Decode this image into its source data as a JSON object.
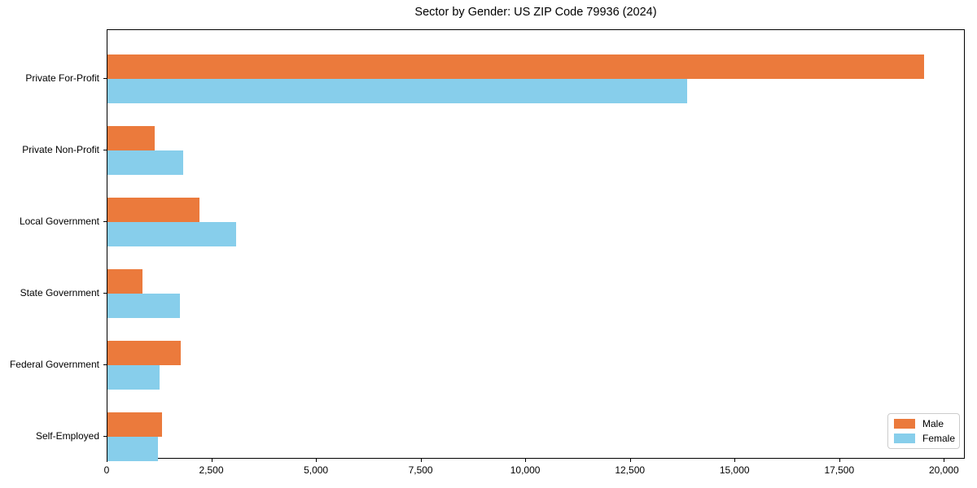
{
  "chart_data": {
    "type": "bar",
    "orientation": "horizontal",
    "title": "Sector by Gender: US ZIP Code 79936 (2024)",
    "categories": [
      "Private For-Profit",
      "Private Non-Profit",
      "Local Government",
      "State Government",
      "Federal Government",
      "Self-Employed"
    ],
    "series": [
      {
        "name": "Male",
        "color": "#eb7a3c",
        "values": [
          19500,
          1130,
          2200,
          840,
          1750,
          1300
        ]
      },
      {
        "name": "Female",
        "color": "#87ceeb",
        "values": [
          13850,
          1800,
          3070,
          1730,
          1240,
          1200
        ]
      }
    ],
    "xlabel": "",
    "ylabel": "",
    "xlim": [
      0,
      20500
    ],
    "xticks": [
      0,
      2500,
      5000,
      7500,
      10000,
      12500,
      15000,
      17500,
      20000
    ],
    "xtick_labels": [
      "0",
      "2,500",
      "5,000",
      "7,500",
      "10,000",
      "12,500",
      "15,000",
      "17,500",
      "20,000"
    ],
    "grid": false,
    "legend_position": "lower right",
    "axis_color": "#000000",
    "legend_border_color": "#cccccc",
    "background_color": "#ffffff"
  }
}
